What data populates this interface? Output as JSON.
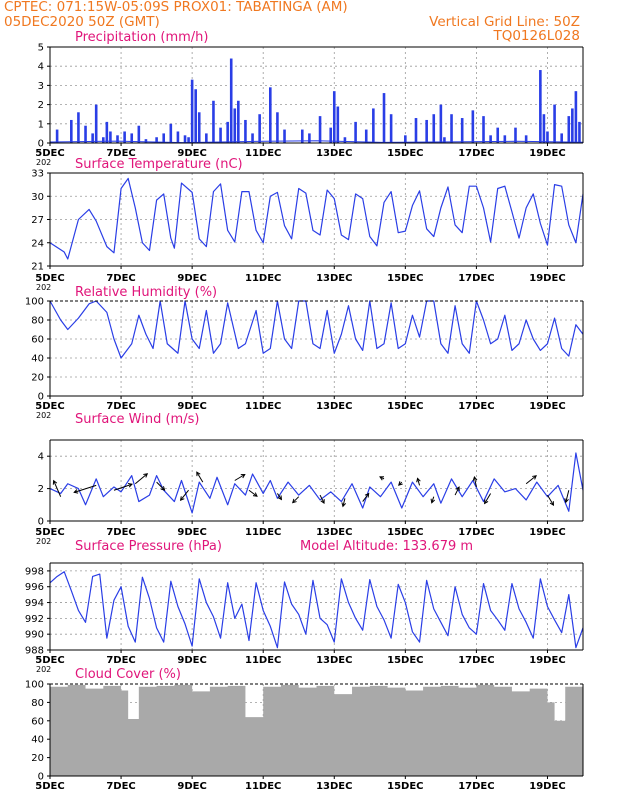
{
  "header": {
    "line1": "CPTEC:   071:15W-05:09S   PROX01: TABATINGA (AM)",
    "line2": "05DEC2020 50Z (GMT)",
    "grid_note": "Vertical Grid Line: 50Z",
    "code": "TQ0126L028"
  },
  "colors": {
    "header": "#f07820",
    "title": "#e0157a",
    "series": "#2a3ee6",
    "cloud": "#a9a9a9"
  },
  "x_axis": {
    "ticks": [
      "5DEC",
      "7DEC",
      "9DEC",
      "11DEC",
      "13DEC",
      "15DEC",
      "17DEC",
      "19DEC"
    ],
    "tick_days": [
      0,
      2,
      4,
      6,
      8,
      10,
      12,
      14
    ],
    "start_label": "5DEC",
    "span_days": 15,
    "year_stub": "202"
  },
  "chart_data": [
    {
      "type": "bar",
      "title": "Precipitation (mm/h)",
      "ylim": [
        0,
        5
      ],
      "yticks": [
        0,
        1,
        2,
        3,
        4,
        5
      ],
      "grid": true,
      "x_days": [
        0.2,
        0.6,
        0.8,
        1.0,
        1.2,
        1.3,
        1.5,
        1.6,
        1.7,
        1.9,
        2.1,
        2.3,
        2.5,
        2.7,
        3.0,
        3.2,
        3.4,
        3.6,
        3.8,
        3.9,
        4.0,
        4.1,
        4.2,
        4.4,
        4.6,
        4.8,
        5.0,
        5.1,
        5.2,
        5.3,
        5.5,
        5.7,
        5.9,
        6.2,
        6.4,
        6.6,
        7.1,
        7.3,
        7.6,
        7.9,
        8.0,
        8.1,
        8.3,
        8.6,
        8.9,
        9.1,
        9.4,
        9.6,
        10.0,
        10.3,
        10.6,
        10.8,
        11.0,
        11.1,
        11.3,
        11.6,
        11.9,
        12.2,
        12.4,
        12.6,
        12.8,
        13.1,
        13.4,
        13.8,
        13.9,
        14.0,
        14.2,
        14.4,
        14.6,
        14.7,
        14.8,
        14.9
      ],
      "values": [
        0.7,
        1.2,
        1.6,
        0.9,
        0.5,
        2.0,
        0.3,
        1.1,
        0.6,
        0.4,
        0.6,
        0.5,
        0.9,
        0.2,
        0.3,
        0.5,
        1.0,
        0.6,
        0.4,
        0.3,
        3.3,
        2.8,
        1.6,
        0.5,
        2.2,
        0.8,
        1.1,
        4.4,
        1.8,
        2.2,
        1.2,
        0.5,
        1.5,
        2.9,
        1.6,
        0.7,
        0.7,
        0.5,
        1.4,
        0.8,
        2.7,
        1.9,
        0.3,
        1.1,
        0.7,
        1.8,
        2.6,
        1.5,
        0.4,
        1.3,
        1.2,
        1.5,
        2.0,
        0.3,
        1.5,
        1.3,
        1.7,
        1.4,
        0.4,
        0.8,
        0.4,
        0.8,
        0.4,
        3.8,
        1.5,
        0.6,
        2.0,
        0.5,
        1.4,
        1.8,
        2.7,
        1.1
      ],
      "baseline_trace": [
        0.05,
        0.1,
        0.02,
        0.08,
        0.12,
        0.03,
        0.06,
        0.09,
        0.04
      ]
    },
    {
      "type": "line",
      "title": "Surface Temperature (nC)",
      "ylim": [
        21,
        33
      ],
      "yticks": [
        21,
        24,
        27,
        30,
        33
      ],
      "grid": true,
      "x_days": [
        0,
        0.4,
        0.5,
        0.8,
        1.1,
        1.3,
        1.6,
        1.8,
        2.0,
        2.2,
        2.4,
        2.6,
        2.8,
        3.0,
        3.2,
        3.4,
        3.5,
        3.7,
        4.0,
        4.2,
        4.4,
        4.6,
        4.8,
        5.0,
        5.2,
        5.4,
        5.6,
        5.8,
        6.0,
        6.2,
        6.4,
        6.6,
        6.8,
        7.0,
        7.2,
        7.4,
        7.6,
        7.8,
        8.0,
        8.2,
        8.4,
        8.6,
        8.8,
        9.0,
        9.2,
        9.4,
        9.6,
        9.8,
        10.0,
        10.2,
        10.4,
        10.6,
        10.8,
        11.0,
        11.2,
        11.4,
        11.6,
        11.8,
        12.0,
        12.2,
        12.4,
        12.6,
        12.8,
        13.0,
        13.2,
        13.4,
        13.6,
        13.8,
        14.0,
        14.2,
        14.4,
        14.6,
        14.8,
        15.0
      ],
      "values": [
        24,
        22.8,
        21.9,
        27,
        28.3,
        26.8,
        23.5,
        22.7,
        31,
        32.3,
        28.5,
        24,
        23,
        29.5,
        30.3,
        24.6,
        23.3,
        31.7,
        30.5,
        24.5,
        23.5,
        30.6,
        31.6,
        25.6,
        24.1,
        30.6,
        30.6,
        25.6,
        24,
        30,
        30.5,
        26.2,
        24.5,
        31,
        30.4,
        25.6,
        25,
        30.8,
        29.7,
        25,
        24.4,
        30.3,
        29.7,
        24.8,
        23.6,
        29.2,
        30.6,
        25.3,
        25.5,
        28.8,
        30.7,
        25.8,
        24.8,
        28.5,
        31.2,
        26.3,
        25.3,
        31.3,
        31.3,
        28.5,
        24.1,
        31,
        31.3,
        28,
        24.6,
        28.5,
        30.3,
        26.5,
        23.7,
        31.5,
        31.3,
        26.3,
        24,
        30.3
      ]
    },
    {
      "type": "line",
      "title": "Relative Humidity (%)",
      "ylim": [
        0,
        100
      ],
      "yticks": [
        0,
        20,
        40,
        60,
        80,
        100
      ],
      "grid": true,
      "x_days": [
        0,
        0.3,
        0.5,
        0.8,
        1.1,
        1.3,
        1.6,
        1.8,
        2.0,
        2.3,
        2.5,
        2.7,
        2.9,
        3.1,
        3.3,
        3.6,
        3.8,
        4.0,
        4.2,
        4.4,
        4.6,
        4.8,
        5.0,
        5.3,
        5.5,
        5.8,
        6.0,
        6.2,
        6.4,
        6.6,
        6.8,
        7.0,
        7.2,
        7.4,
        7.6,
        7.8,
        8.0,
        8.2,
        8.4,
        8.6,
        8.8,
        9.0,
        9.2,
        9.4,
        9.6,
        9.8,
        10.0,
        10.2,
        10.4,
        10.6,
        10.8,
        11.0,
        11.2,
        11.4,
        11.6,
        11.8,
        12.0,
        12.2,
        12.4,
        12.6,
        12.8,
        13.0,
        13.2,
        13.4,
        13.6,
        13.8,
        14.0,
        14.2,
        14.4,
        14.6,
        14.8,
        15.0
      ],
      "values": [
        100,
        80,
        70,
        82,
        97,
        100,
        88,
        60,
        40,
        55,
        85,
        65,
        50,
        100,
        55,
        45,
        100,
        60,
        50,
        90,
        45,
        55,
        98,
        50,
        55,
        90,
        45,
        50,
        100,
        60,
        50,
        100,
        100,
        55,
        50,
        90,
        45,
        65,
        95,
        60,
        48,
        100,
        50,
        55,
        98,
        50,
        55,
        85,
        62,
        100,
        100,
        55,
        45,
        95,
        55,
        45,
        100,
        80,
        55,
        60,
        85,
        48,
        55,
        80,
        60,
        48,
        55,
        82,
        50,
        42,
        75,
        65
      ],
      "dashed_top": true
    },
    {
      "type": "line",
      "title": "Surface Wind (m/s)",
      "ylim": [
        0,
        5
      ],
      "yticks": [
        0,
        2,
        4
      ],
      "grid": true,
      "x_days": [
        0,
        0.3,
        0.5,
        0.8,
        1.0,
        1.3,
        1.5,
        1.8,
        2.0,
        2.3,
        2.5,
        2.8,
        3.0,
        3.2,
        3.5,
        3.7,
        4.0,
        4.2,
        4.5,
        4.7,
        5.0,
        5.2,
        5.5,
        5.7,
        6.0,
        6.2,
        6.4,
        6.7,
        7.0,
        7.3,
        7.6,
        7.9,
        8.2,
        8.5,
        8.8,
        9.0,
        9.3,
        9.6,
        9.9,
        10.2,
        10.5,
        10.8,
        11.0,
        11.3,
        11.6,
        11.9,
        12.2,
        12.5,
        12.8,
        13.1,
        13.4,
        13.7,
        14.0,
        14.3,
        14.6,
        14.8,
        15.0
      ],
      "values": [
        2.0,
        1.7,
        2.3,
        2.0,
        1.0,
        2.6,
        1.5,
        2.1,
        1.8,
        2.8,
        1.2,
        1.6,
        2.8,
        1.9,
        1.2,
        2.5,
        0.5,
        2.4,
        1.4,
        2.7,
        1.0,
        2.3,
        1.6,
        2.9,
        1.7,
        2.5,
        1.4,
        2.4,
        1.6,
        2.2,
        1.3,
        1.8,
        1.2,
        2.3,
        0.8,
        2.1,
        1.5,
        2.4,
        0.8,
        2.4,
        1.5,
        2.3,
        1.1,
        2.6,
        1.5,
        2.5,
        1.2,
        2.6,
        1.8,
        2.0,
        1.3,
        2.4,
        1.5,
        2.2,
        0.6,
        4.2,
        1.9
      ],
      "arrows": [
        {
          "day": 0.3,
          "value": 1.5,
          "dx": -7,
          "dy": -16
        },
        {
          "day": 1.3,
          "value": 2.2,
          "dx": -22,
          "dy": 7
        },
        {
          "day": 1.8,
          "value": 1.9,
          "dx": 18,
          "dy": -6
        },
        {
          "day": 2.4,
          "value": 2.3,
          "dx": 12,
          "dy": -10
        },
        {
          "day": 3.0,
          "value": 2.4,
          "dx": 8,
          "dy": 8
        },
        {
          "day": 3.9,
          "value": 1.9,
          "dx": -8,
          "dy": 10
        },
        {
          "day": 4.3,
          "value": 2.4,
          "dx": -6,
          "dy": -10
        },
        {
          "day": 5.2,
          "value": 2.5,
          "dx": 10,
          "dy": -6
        },
        {
          "day": 5.6,
          "value": 1.9,
          "dx": 8,
          "dy": 6
        },
        {
          "day": 6.4,
          "value": 1.7,
          "dx": 4,
          "dy": 6
        },
        {
          "day": 7.0,
          "value": 1.5,
          "dx": -6,
          "dy": 6
        },
        {
          "day": 7.6,
          "value": 1.6,
          "dx": 4,
          "dy": 8
        },
        {
          "day": 8.3,
          "value": 1.4,
          "dx": -2,
          "dy": 8
        },
        {
          "day": 8.8,
          "value": 1.2,
          "dx": 6,
          "dy": -8
        },
        {
          "day": 9.4,
          "value": 2.6,
          "dx": -4,
          "dy": -2
        },
        {
          "day": 9.9,
          "value": 2.4,
          "dx": -3,
          "dy": 3
        },
        {
          "day": 10.4,
          "value": 2.2,
          "dx": -2,
          "dy": -7
        },
        {
          "day": 10.8,
          "value": 1.5,
          "dx": -2,
          "dy": 6
        },
        {
          "day": 11.4,
          "value": 1.6,
          "dx": 4,
          "dy": -8
        },
        {
          "day": 12.0,
          "value": 2.1,
          "dx": -2,
          "dy": -10
        },
        {
          "day": 12.4,
          "value": 1.7,
          "dx": -6,
          "dy": 10
        },
        {
          "day": 13.4,
          "value": 2.3,
          "dx": 10,
          "dy": -8
        },
        {
          "day": 14.0,
          "value": 1.6,
          "dx": 6,
          "dy": 10
        },
        {
          "day": 14.6,
          "value": 1.9,
          "dx": -3,
          "dy": 12
        }
      ]
    },
    {
      "type": "line",
      "title": "Surface Pressure (hPa)",
      "subtitle": "Model Altitude: 133.679 m",
      "ylim": [
        988,
        999
      ],
      "yticks": [
        988,
        990,
        992,
        994,
        996,
        998
      ],
      "grid": true,
      "x_days": [
        0,
        0.2,
        0.4,
        0.6,
        0.8,
        1.0,
        1.2,
        1.4,
        1.6,
        1.8,
        2.0,
        2.2,
        2.4,
        2.6,
        2.8,
        3.0,
        3.2,
        3.4,
        3.6,
        3.8,
        4.0,
        4.2,
        4.4,
        4.6,
        4.8,
        5.0,
        5.2,
        5.4,
        5.6,
        5.8,
        6.0,
        6.2,
        6.4,
        6.6,
        6.8,
        7.0,
        7.2,
        7.4,
        7.6,
        7.8,
        8.0,
        8.2,
        8.4,
        8.6,
        8.8,
        9.0,
        9.2,
        9.4,
        9.6,
        9.8,
        10.0,
        10.2,
        10.4,
        10.6,
        10.8,
        11.0,
        11.2,
        11.4,
        11.6,
        11.8,
        12.0,
        12.2,
        12.4,
        12.6,
        12.8,
        13.0,
        13.2,
        13.4,
        13.6,
        13.8,
        14.0,
        14.2,
        14.4,
        14.6,
        14.8,
        15.0
      ],
      "values": [
        996.5,
        997.3,
        997.9,
        995.5,
        993.0,
        991.5,
        997.3,
        997.6,
        989.5,
        994.3,
        996.0,
        991.0,
        989.0,
        997.2,
        994.5,
        990.8,
        989.0,
        996.7,
        993.5,
        991.3,
        988.5,
        997.0,
        994.0,
        992.2,
        989.5,
        996.5,
        992.0,
        993.8,
        989.2,
        996.5,
        993.0,
        991.0,
        988.3,
        996.6,
        993.8,
        992.5,
        990.0,
        996.8,
        992.0,
        991.2,
        989.0,
        997.0,
        994.0,
        992.0,
        990.5,
        996.9,
        993.5,
        991.8,
        989.5,
        996.3,
        994.0,
        990.3,
        989.0,
        996.8,
        993.2,
        991.5,
        989.8,
        996.0,
        992.5,
        990.8,
        990.0,
        996.4,
        993.0,
        991.8,
        990.5,
        996.4,
        993.2,
        991.5,
        989.5,
        997.0,
        993.5,
        991.8,
        990.2,
        995.0,
        988.3,
        990.8
      ]
    },
    {
      "type": "bar",
      "title": "Cloud Cover (%)",
      "ylim": [
        0,
        100
      ],
      "yticks": [
        0,
        20,
        40,
        60,
        80,
        100
      ],
      "grid": true,
      "x_days": [
        0,
        0.5,
        1.0,
        1.5,
        2.0,
        2.2,
        2.5,
        3.0,
        3.5,
        4.0,
        4.5,
        5.0,
        5.5,
        6.0,
        6.5,
        7.0,
        7.5,
        8.0,
        8.5,
        9.0,
        9.5,
        10.0,
        10.5,
        11.0,
        11.5,
        12.0,
        12.5,
        13.0,
        13.5,
        14.0,
        14.2,
        14.5,
        15.0
      ],
      "values": [
        97,
        99,
        95,
        98,
        93,
        62,
        97,
        98,
        99,
        92,
        97,
        98,
        64,
        97,
        99,
        96,
        98,
        89,
        97,
        98,
        96,
        93,
        97,
        98,
        96,
        99,
        97,
        92,
        95,
        80,
        60,
        97,
        98
      ],
      "dashed_top": true
    }
  ]
}
